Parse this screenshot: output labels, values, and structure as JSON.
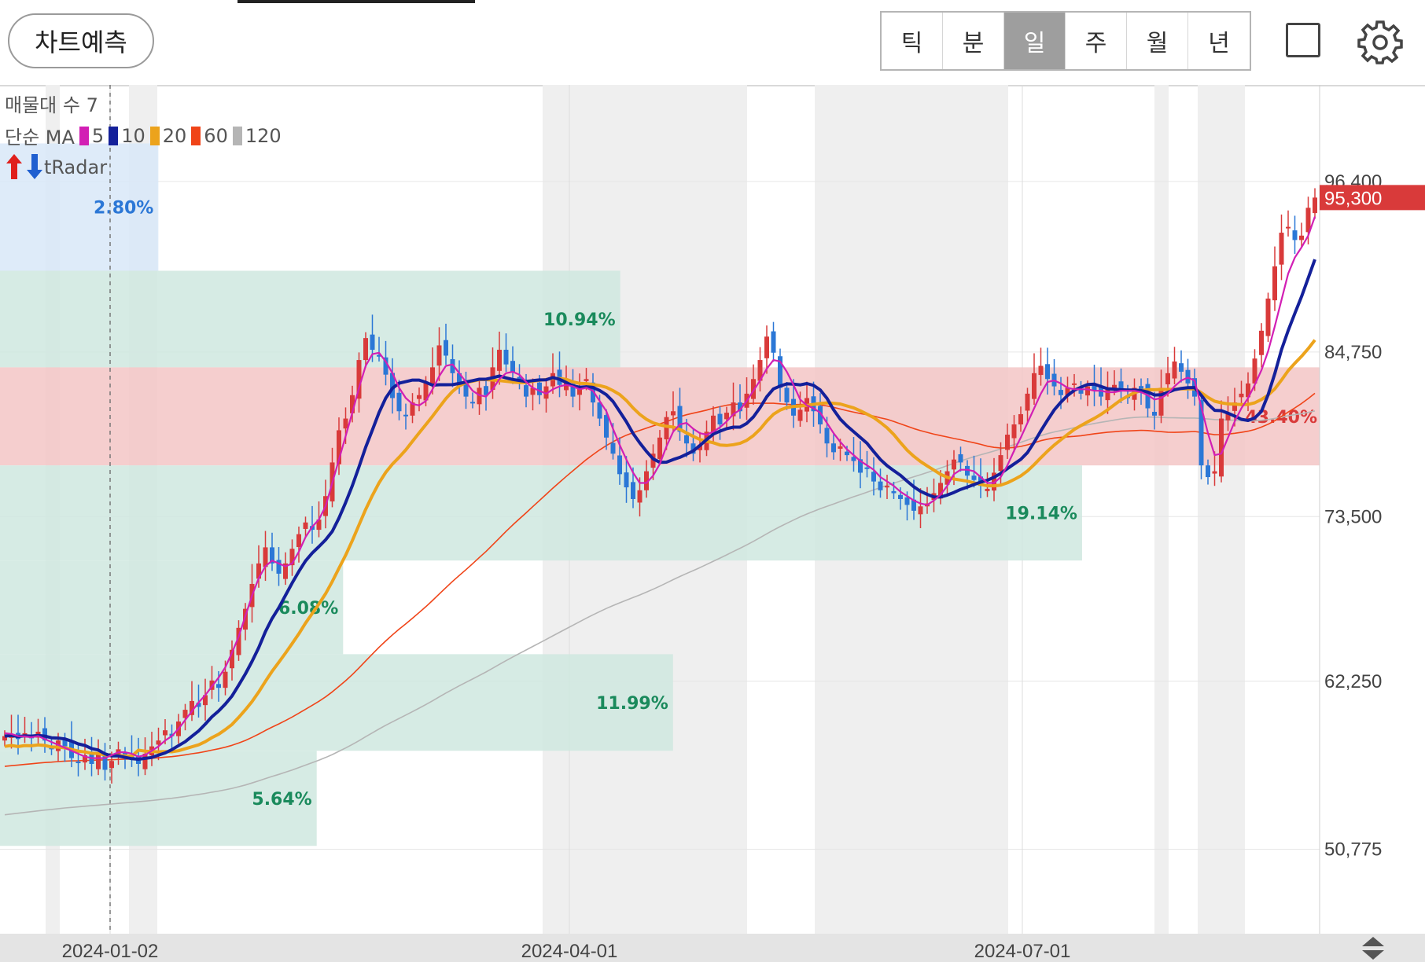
{
  "header": {
    "predict_button": "차트예측",
    "tabs": [
      {
        "label": "틱",
        "active": false
      },
      {
        "label": "분",
        "active": false
      },
      {
        "label": "일",
        "active": true
      },
      {
        "label": "주",
        "active": false
      },
      {
        "label": "월",
        "active": false
      },
      {
        "label": "년",
        "active": false
      }
    ],
    "icons": {
      "fullscreen": "square-icon",
      "settings": "gear-icon"
    }
  },
  "indicators": {
    "volume_profile_label": "매물대 수 7",
    "ma_label": "단순 MA",
    "ma_items": [
      {
        "label": "5",
        "color": "#d21fb4"
      },
      {
        "label": "10",
        "color": "#14209a"
      },
      {
        "label": "20",
        "color": "#eca31c"
      },
      {
        "label": "60",
        "color": "#f04418"
      },
      {
        "label": "120",
        "color": "#b5b5b5"
      }
    ],
    "tradar_label": "tRadar"
  },
  "chart_data": {
    "type": "candlestick",
    "title": "",
    "ylim": [
      45000,
      103000
    ],
    "yticks": [
      {
        "value": 96400,
        "label": "96,400"
      },
      {
        "value": 84750,
        "label": "84,750"
      },
      {
        "value": 73500,
        "label": "73,500"
      },
      {
        "value": 62250,
        "label": "62,250"
      },
      {
        "value": 50775,
        "label": "50,775"
      }
    ],
    "x_labels": [
      "2024-01-02",
      "2024-04-01",
      "2024-07-01"
    ],
    "last_price": {
      "value": 95300,
      "label": "95,300",
      "color": "#d93a3a"
    },
    "colors": {
      "up": "#d93a3a",
      "down": "#2b77d6",
      "vp_upper": "#f3c6c6",
      "vp_lower": "#cfe8df",
      "vp_top": "#d8e7f8"
    },
    "volume_profile": [
      {
        "low": 90300,
        "high": 99000,
        "pct": "2.80%",
        "width_ratio": 0.12
      },
      {
        "low": 83700,
        "high": 90300,
        "pct": "10.94%",
        "width_ratio": 0.47
      },
      {
        "low": 77000,
        "high": 83700,
        "pct": "43.40%",
        "width_ratio": 1.0
      },
      {
        "low": 70500,
        "high": 77000,
        "pct": "19.14%",
        "width_ratio": 0.82
      },
      {
        "low": 64100,
        "high": 70500,
        "pct": "6.08%",
        "width_ratio": 0.26
      },
      {
        "low": 57500,
        "high": 64100,
        "pct": "11.99%",
        "width_ratio": 0.51
      },
      {
        "low": 51000,
        "high": 57500,
        "pct": "5.64%",
        "width_ratio": 0.24
      }
    ],
    "close": [
      58500,
      58600,
      58300,
      58700,
      58400,
      58800,
      58200,
      57600,
      58200,
      57800,
      57000,
      56700,
      57200,
      56600,
      57400,
      56200,
      56800,
      57600,
      57200,
      56900,
      56600,
      57300,
      57800,
      58200,
      58900,
      58500,
      59500,
      60300,
      60900,
      60500,
      61300,
      62300,
      61800,
      62900,
      64400,
      65900,
      67200,
      68900,
      70300,
      71400,
      70300,
      69600,
      70300,
      71300,
      72300,
      73100,
      72600,
      73300,
      74900,
      77200,
      79400,
      80200,
      81800,
      84200,
      85700,
      84900,
      84500,
      83200,
      81600,
      80700,
      80400,
      81300,
      81800,
      82700,
      83700,
      85200,
      84500,
      83300,
      82400,
      81700,
      81300,
      82300,
      81800,
      83700,
      84900,
      83900,
      83400,
      82600,
      81700,
      82300,
      81800,
      82400,
      83300,
      82500,
      82700,
      81700,
      82400,
      82900,
      81300,
      80200,
      78900,
      77800,
      76400,
      75500,
      74700,
      75300,
      76600,
      77800,
      78900,
      80300,
      80700,
      79300,
      78500,
      77800,
      78400,
      79300,
      80400,
      79800,
      80600,
      81300,
      80700,
      81900,
      82900,
      84200,
      85800,
      84700,
      82300,
      81300,
      80400,
      80800,
      81600,
      80700,
      79800,
      78500,
      77900,
      78300,
      77700,
      77300,
      76500,
      76800,
      75900,
      75300,
      75600,
      75100,
      74700,
      74300,
      73900,
      74200,
      74400,
      75100,
      75800,
      76600,
      77400,
      77200,
      76300,
      76000,
      75600,
      75400,
      76500,
      77700,
      79100,
      79800,
      80500,
      81900,
      83300,
      83800,
      82900,
      82400,
      81800,
      82300,
      82600,
      81900,
      82400,
      82100,
      81700,
      82300,
      82500,
      82100,
      81600,
      82300,
      82200,
      80900,
      80400,
      82300,
      83300,
      84100,
      83400,
      82600,
      81700,
      77000,
      76200,
      76600,
      80200,
      80600,
      81300,
      81900,
      82600,
      84300,
      86200,
      88400,
      90600,
      92900,
      93300,
      92400,
      92700,
      94600,
      95300
    ],
    "ma5": [
      58700,
      58650,
      58500,
      58480,
      58420,
      58500,
      58300,
      58100,
      57900,
      57700,
      57500,
      57300,
      57100,
      57000,
      57000,
      57000,
      57200,
      57400,
      57400,
      57300,
      57100,
      57200,
      57500,
      57800,
      58200,
      58500,
      59000,
      59600,
      60200,
      60800,
      61300,
      61900,
      62500,
      63200,
      64200,
      65300,
      66700,
      68100,
      69300,
      70100,
      70500,
      70300,
      70100,
      70300,
      71100,
      72100,
      72800,
      73300,
      74200,
      75800,
      77400,
      79000,
      80600,
      82300,
      83800,
      84600,
      84700,
      84100,
      83300,
      82300,
      81600,
      81200,
      81100,
      81400,
      82200,
      83100,
      83800,
      83900,
      83300,
      82700,
      82100,
      81800,
      81700,
      82200,
      82900,
      83300,
      83400,
      83200,
      82700,
      82300,
      82100,
      81900,
      82200,
      82400,
      82500,
      82400,
      82200,
      82300,
      82100,
      81400,
      80700,
      79500,
      78400,
      77400,
      76500,
      75800,
      75800,
      76300,
      77100,
      78300,
      79300,
      79800,
      79900,
      79500,
      79200,
      79100,
      79300,
      79600,
      80000,
      80500,
      80800,
      81400,
      82100,
      82800,
      83600,
      84200,
      84100,
      83400,
      82500,
      81500,
      81100,
      80900,
      80600,
      79900,
      79200,
      78600,
      78100,
      77700,
      77300,
      77000,
      76700,
      76200,
      75900,
      75600,
      75200,
      74900,
      74600,
      74400,
      74300,
      74600,
      75000,
      75600,
      76400,
      76700,
      76700,
      76600,
      76200,
      75800,
      75800,
      76200,
      77000,
      78000,
      78900,
      79900,
      80900,
      81900,
      82700,
      82800,
      82600,
      82300,
      82200,
      82200,
      82200,
      82100,
      82100,
      82000,
      82000,
      82100,
      82100,
      82100,
      82000,
      81800,
      81500,
      81600,
      81900,
      82400,
      82800,
      83000,
      82800,
      81000,
      79200,
      77700,
      77800,
      78900,
      80000,
      80900,
      81600,
      82500,
      83500,
      84800,
      86500,
      88300,
      90100,
      91200,
      91900,
      92700,
      94000
    ]
  }
}
